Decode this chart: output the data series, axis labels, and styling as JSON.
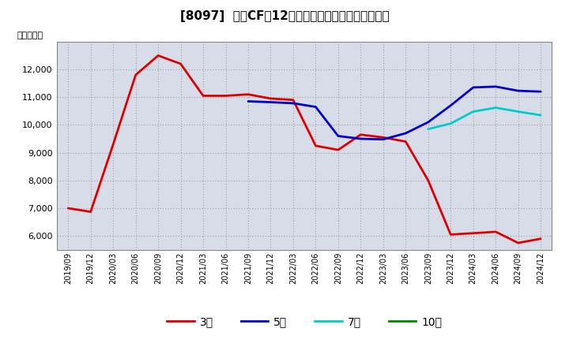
{
  "title": "[8097]  営業CFだ12か月移動合計の標準偏差の推移",
  "ylabel": "（百万円）",
  "ylim": [
    5500,
    13000
  ],
  "yticks": [
    6000,
    7000,
    8000,
    9000,
    10000,
    11000,
    12000
  ],
  "background_color": "#ffffff",
  "plot_bg_color": "#d8dce8",
  "grid_color": "#999999",
  "series": {
    "3年": {
      "color": "#dd0000",
      "data": [
        [
          "2019/09",
          7000
        ],
        [
          "2019/12",
          6870
        ],
        [
          "2020/03",
          9300
        ],
        [
          "2020/06",
          11800
        ],
        [
          "2020/09",
          12500
        ],
        [
          "2020/12",
          12200
        ],
        [
          "2021/03",
          11050
        ],
        [
          "2021/06",
          11050
        ],
        [
          "2021/09",
          11100
        ],
        [
          "2021/12",
          10950
        ],
        [
          "2022/03",
          10900
        ],
        [
          "2022/06",
          9250
        ],
        [
          "2022/09",
          9100
        ],
        [
          "2022/12",
          9650
        ],
        [
          "2023/03",
          9550
        ],
        [
          "2023/06",
          9400
        ],
        [
          "2023/09",
          8000
        ],
        [
          "2023/12",
          6050
        ],
        [
          "2024/03",
          6100
        ],
        [
          "2024/06",
          6150
        ],
        [
          "2024/09",
          5750
        ],
        [
          "2024/12",
          5900
        ]
      ]
    },
    "5年": {
      "color": "#0000cc",
      "data": [
        [
          "2021/09",
          10850
        ],
        [
          "2021/12",
          10820
        ],
        [
          "2022/03",
          10780
        ],
        [
          "2022/06",
          10650
        ],
        [
          "2022/09",
          9600
        ],
        [
          "2022/12",
          9500
        ],
        [
          "2023/03",
          9480
        ],
        [
          "2023/06",
          9700
        ],
        [
          "2023/09",
          10100
        ],
        [
          "2023/12",
          10700
        ],
        [
          "2024/03",
          11350
        ],
        [
          "2024/06",
          11380
        ],
        [
          "2024/09",
          11230
        ],
        [
          "2024/12",
          11200
        ]
      ]
    },
    "7年": {
      "color": "#00cccc",
      "data": [
        [
          "2023/09",
          9850
        ],
        [
          "2023/12",
          10050
        ],
        [
          "2024/03",
          10480
        ],
        [
          "2024/06",
          10620
        ],
        [
          "2024/09",
          10480
        ],
        [
          "2024/12",
          10350
        ]
      ]
    },
    "10年": {
      "color": "#008800",
      "data": []
    }
  },
  "legend_labels": [
    "3年",
    "5年",
    "7年",
    "10年"
  ],
  "legend_colors": [
    "#dd0000",
    "#0000cc",
    "#00cccc",
    "#008800"
  ],
  "xtick_labels": [
    "2019/09",
    "2019/12",
    "2020/03",
    "2020/06",
    "2020/09",
    "2020/12",
    "2021/03",
    "2021/06",
    "2021/09",
    "2021/12",
    "2022/03",
    "2022/06",
    "2022/09",
    "2022/12",
    "2023/03",
    "2023/06",
    "2023/09",
    "2023/12",
    "2024/03",
    "2024/06",
    "2024/09",
    "2024/12"
  ]
}
